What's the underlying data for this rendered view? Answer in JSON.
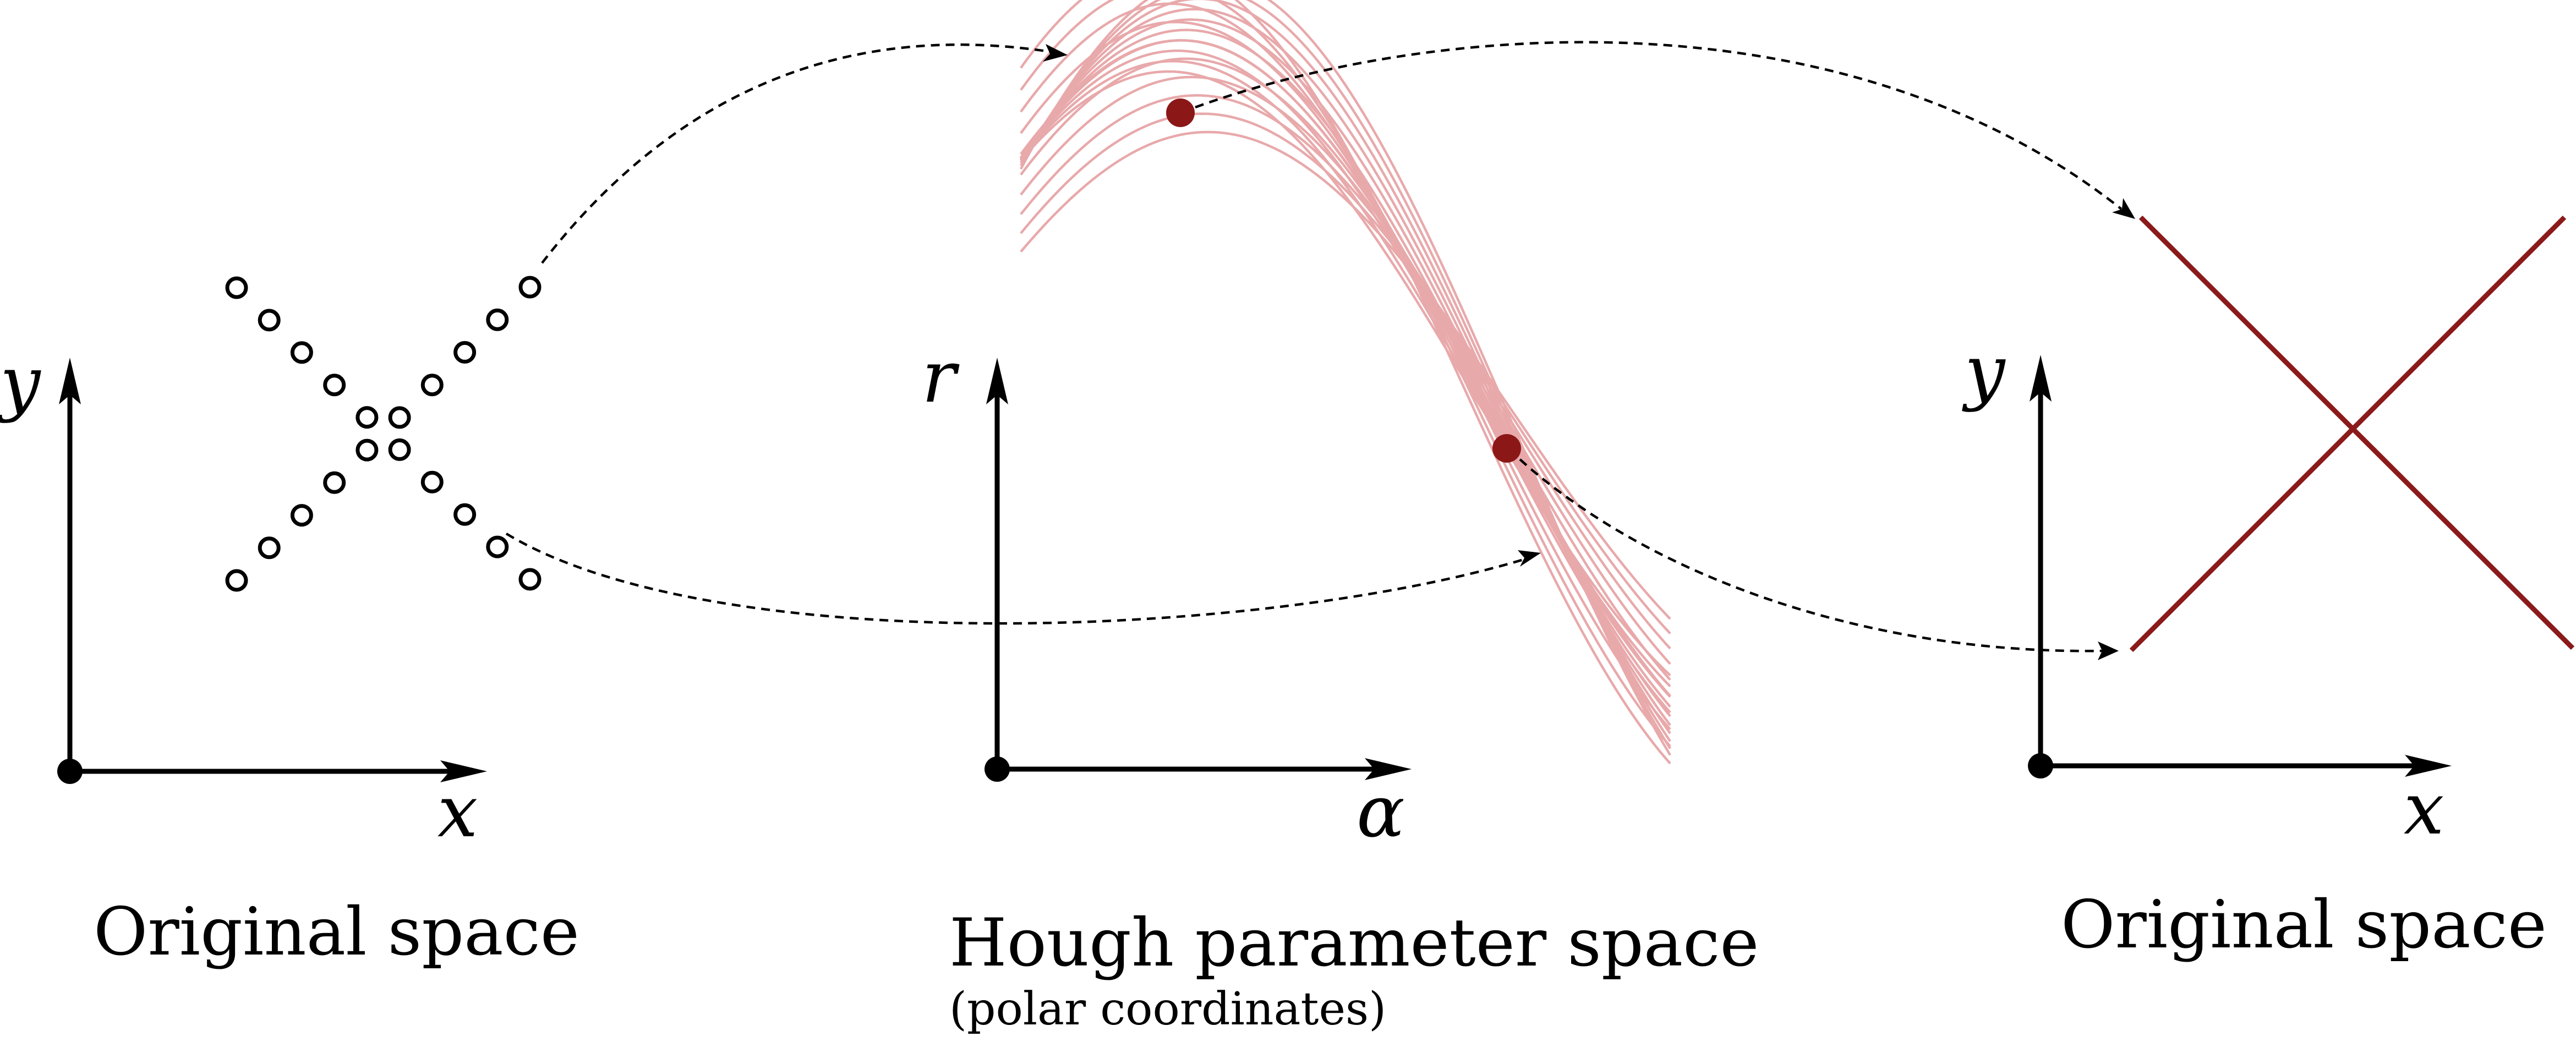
{
  "panels": {
    "left": {
      "x_label": "x",
      "y_label": "y",
      "caption": "Original space"
    },
    "middle": {
      "x_label": "α",
      "y_label": "r",
      "caption": "Hough parameter space",
      "subcaption": "(polar coordinates)"
    },
    "right": {
      "x_label": "x",
      "y_label": "y",
      "caption": "Original space"
    }
  },
  "colors": {
    "curves": "#e8a9ab",
    "highlight": "#8b1717",
    "axes": "#000000"
  },
  "edge_points_count": 20,
  "hough_curves_count": 20,
  "detected_peaks_count": 2,
  "detected_lines_count": 2
}
